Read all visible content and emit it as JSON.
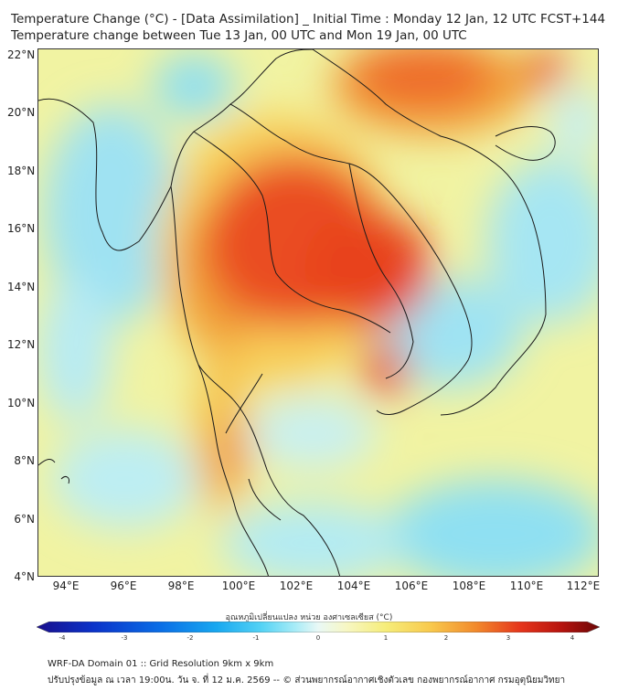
{
  "header": {
    "title_line1": "Temperature Change (°C) - [Data Assimilation] _ Initial Time : Monday 12 Jan, 12 UTC FCST+144",
    "title_line2": "Temperature change between Tue 13 Jan, 00 UTC and Mon 19 Jan, 00 UTC"
  },
  "map": {
    "lat_labels": [
      "22°N",
      "20°N",
      "18°N",
      "16°N",
      "14°N",
      "12°N",
      "10°N",
      "8°N",
      "6°N",
      "4°N"
    ],
    "lat_values": [
      22,
      20,
      18,
      16,
      14,
      12,
      10,
      8,
      6,
      4
    ],
    "lon_labels": [
      "94°E",
      "96°E",
      "98°E",
      "100°E",
      "102°E",
      "104°E",
      "106°E",
      "108°E",
      "110°E",
      "112°E"
    ],
    "lon_values": [
      94,
      96,
      98,
      100,
      102,
      104,
      106,
      108,
      110,
      112
    ],
    "lon_range": [
      93,
      112.5
    ],
    "lat_range": [
      4,
      22.3
    ],
    "background_color": "#f1f3a2",
    "border_color": "#1a1a1a"
  },
  "colorbar": {
    "title": "อุณหภูมิเปลี่ยนแปลง หน่วย องศาเซลเซียส (°C)",
    "min": -4,
    "max": 4,
    "tick_labels": [
      "-4",
      "-3",
      "-2",
      "-1",
      "0",
      "1",
      "2",
      "3",
      "4"
    ],
    "colors": [
      "#1a0f8c",
      "#0b32c9",
      "#0a6ee6",
      "#18a8f0",
      "#55d3f5",
      "#a9ecf7",
      "#e9f8f6",
      "#f7f7c4",
      "#f6ed7a",
      "#f8c94c",
      "#f28a2c",
      "#e5341b",
      "#b8140e",
      "#6b0606"
    ]
  },
  "footer": {
    "line1": "WRF-DA Domain 01 :: Grid Resolution 9km x 9km",
    "line2": "ปรับปรุงข้อมูล ณ เวลา 19:00น. วัน จ. ที่ 12 ม.ค. 2569 -- © ส่วนพยากรณ์อากาศเชิงตัวเลข กองพยากรณ์อากาศ กรมอุตุนิยมวิทยา"
  }
}
